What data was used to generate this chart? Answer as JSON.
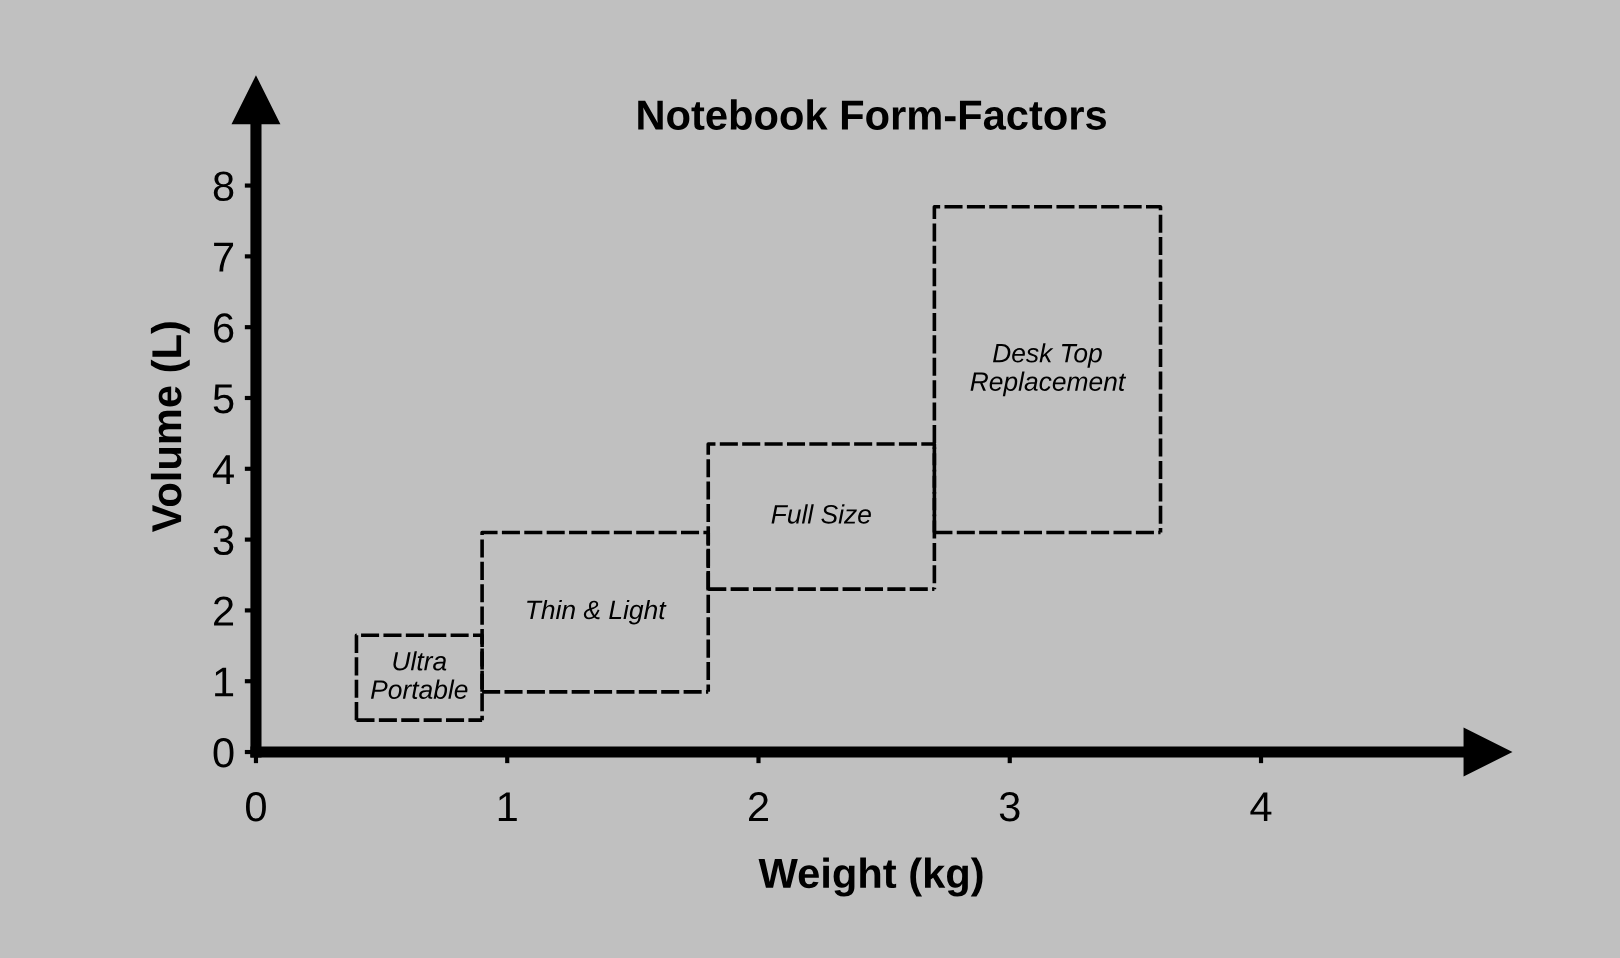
{
  "chart_data": {
    "type": "line",
    "title": "Notebook Form-Factors",
    "xlabel": "Weight (kg)",
    "ylabel": "Volume (L)",
    "xlim": [
      0,
      4.9
    ],
    "xticks": [
      0,
      1,
      2,
      3,
      4
    ],
    "ylim": [
      0,
      9.2
    ],
    "yticks": [
      0,
      1,
      2,
      3,
      4,
      5,
      6,
      7,
      8
    ],
    "grid": false,
    "legend": false,
    "line_style": "dashed",
    "marker": "none",
    "series": [
      {
        "name": "Ultra\nPortable",
        "color": "#000000",
        "x": [
          0.4,
          0.4,
          0.9,
          0.9
        ],
        "values": [
          0.45,
          1.65,
          1.65,
          0.45
        ]
      },
      {
        "color": "#000000",
        "x": [
          0.4,
          0.9
        ],
        "values": [
          0.45,
          0.45
        ]
      },
      {
        "name": "Thin & Light",
        "color": "#000000",
        "x": [
          0.9,
          0.9,
          1.8,
          1.8
        ],
        "values": [
          0.85,
          3.1,
          3.1,
          0.85
        ]
      },
      {
        "color": "#000000",
        "x": [
          0.9,
          1.8
        ],
        "values": [
          0.85,
          0.85
        ]
      },
      {
        "name": "Full Size",
        "color": "#000000",
        "x": [
          1.8,
          1.8,
          2.7,
          2.7
        ],
        "values": [
          2.3,
          4.35,
          4.35,
          2.3
        ]
      },
      {
        "color": "#000000",
        "x": [
          1.8,
          2.7
        ],
        "values": [
          2.3,
          2.3
        ]
      },
      {
        "name": "Desk Top\nReplacement",
        "color": "#000000",
        "x": [
          2.7,
          2.7,
          3.6,
          3.6
        ],
        "values": [
          3.1,
          7.7,
          7.7,
          3.1
        ]
      },
      {
        "color": "#000000",
        "x": [
          2.7,
          3.6
        ],
        "values": [
          3.1,
          3.1
        ]
      }
    ]
  }
}
